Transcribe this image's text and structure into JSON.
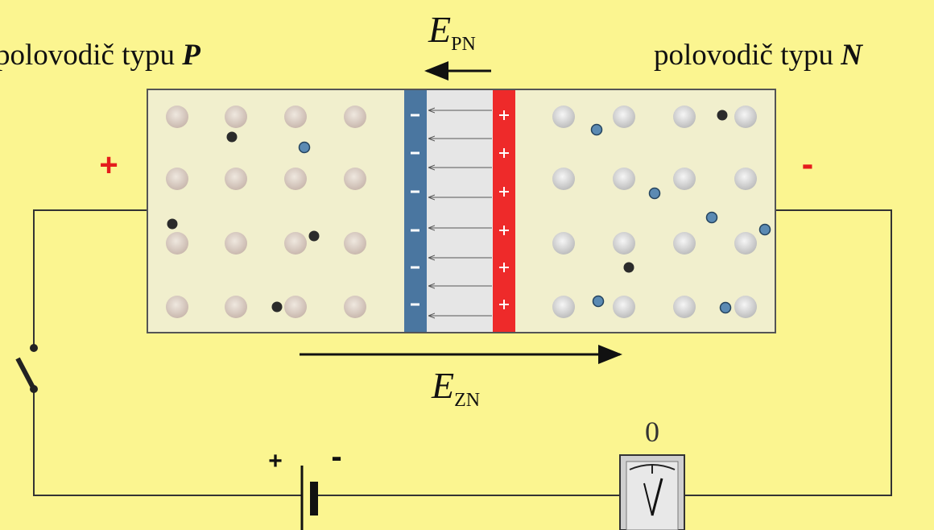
{
  "p_label": {
    "text": "polovodič typu",
    "letter": "P"
  },
  "n_label": {
    "text": "polovodič typu",
    "letter": "N"
  },
  "field_pn": {
    "symbol": "E",
    "subscript": "PN"
  },
  "field_zn": {
    "symbol": "E",
    "subscript": "ZN"
  },
  "left_terminal": "+",
  "right_terminal": "-",
  "battery": {
    "plus": "+",
    "minus": "-"
  },
  "meter_reading": "0"
}
